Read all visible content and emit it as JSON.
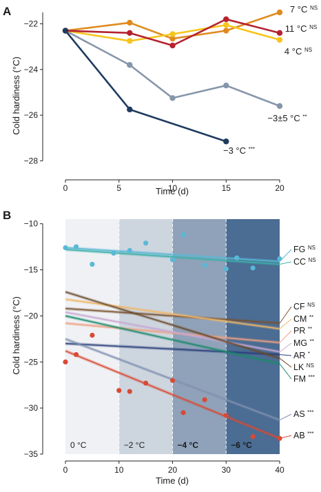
{
  "chart_data": [
    {
      "panel": "A",
      "type": "line",
      "xlabel": "Time (d)",
      "ylabel": "Cold hardiness (°C)",
      "xlim": [
        0,
        20
      ],
      "ylim": [
        -28.5,
        -21.5
      ],
      "xticks": [
        0,
        5,
        10,
        15,
        20
      ],
      "yticks": [
        -28,
        -26,
        -24,
        -22
      ],
      "ytick_labels": [
        "−28",
        "−26",
        "−24",
        "−22"
      ],
      "grid": false,
      "series": [
        {
          "name": "7 °C",
          "sig": "NS",
          "color": "#e08a1e",
          "x": [
            0,
            6,
            10,
            15,
            20
          ],
          "y": [
            -22.3,
            -21.95,
            -22.65,
            -22.3,
            -21.5
          ]
        },
        {
          "name": "11 °C",
          "sig": "NS",
          "color": "#b5222f",
          "x": [
            0,
            6,
            10,
            15,
            20
          ],
          "y": [
            -22.3,
            -22.4,
            -22.95,
            -21.8,
            -22.4
          ]
        },
        {
          "name": "4 °C",
          "sig": "NS",
          "color": "#f6c51d",
          "x": [
            0,
            6,
            10,
            15,
            20
          ],
          "y": [
            -22.3,
            -22.75,
            -22.45,
            -22.05,
            -22.7
          ]
        },
        {
          "name": "−3±5 °C",
          "sig": "**",
          "color": "#8696aa",
          "x": [
            0,
            6,
            10,
            15,
            20
          ],
          "y": [
            -22.3,
            -23.8,
            -25.25,
            -24.7,
            -25.6
          ]
        },
        {
          "name": "−3 °C",
          "sig": "***",
          "color": "#1f3a5f",
          "x": [
            0,
            6,
            15
          ],
          "y": [
            -22.3,
            -25.75,
            -27.15
          ]
        }
      ]
    },
    {
      "panel": "B",
      "type": "scatter",
      "xlabel": "Time (d)",
      "ylabel": "Cold hardiness (°C)",
      "xlim": [
        0,
        40
      ],
      "ylim": [
        -35,
        -9.5
      ],
      "xticks": [
        0,
        10,
        20,
        30,
        40
      ],
      "yticks": [
        -35,
        -30,
        -25,
        -20,
        -15,
        -10
      ],
      "ytick_labels": [
        "−35",
        "−30",
        "−25",
        "−20",
        "−15",
        "−10"
      ],
      "grid": false,
      "bands": [
        {
          "label": "0 °C",
          "x": [
            0,
            10
          ],
          "color": "#eff1f5",
          "label_color": "#1a1a1a"
        },
        {
          "label": "−2 °C",
          "x": [
            10,
            20
          ],
          "color": "#cdd5df",
          "label_color": "#1a1a1a"
        },
        {
          "label": "−4 °C",
          "x": [
            20,
            30
          ],
          "color": "#8fa2b9",
          "label_color": "#ffffff"
        },
        {
          "label": "−6 °C",
          "x": [
            30,
            40
          ],
          "color": "#4b6c93",
          "label_color": "#ffffff"
        }
      ],
      "lines": [
        {
          "name": "FG",
          "sig": "NS",
          "color": "#5ab8d6",
          "y0": -12.6,
          "y1": -14.1
        },
        {
          "name": "CC",
          "sig": "NS",
          "color": "#3db0a8",
          "y0": -12.8,
          "y1": -14.4
        },
        {
          "name": "CF",
          "sig": "NS",
          "color": "#7a5230",
          "y0": -19.2,
          "y1": -20.8
        },
        {
          "name": "CM",
          "sig": "**",
          "color": "#f0b86a",
          "y0": -18.2,
          "y1": -21.4
        },
        {
          "name": "PR",
          "sig": "**",
          "color": "#f0a080",
          "y0": -20.8,
          "y1": -22.9
        },
        {
          "name": "MG",
          "sig": "**",
          "color": "#c9a8d4",
          "y0": -19.6,
          "y1": -23.9
        },
        {
          "name": "AR",
          "sig": "*",
          "color": "#2a3f7a",
          "y0": -23.0,
          "y1": -24.2
        },
        {
          "name": "LK",
          "sig": "NS",
          "color": "#6b4a2a",
          "y0": -17.4,
          "y1": -24.6
        },
        {
          "name": "FM",
          "sig": "***",
          "color": "#1b8a6a",
          "y0": -20.0,
          "y1": -25.2
        },
        {
          "name": "AS",
          "sig": "***",
          "color": "#8090b0",
          "y0": -22.5,
          "y1": -31.3
        },
        {
          "name": "AB",
          "sig": "***",
          "color": "#d84a35",
          "y0": -23.8,
          "y1": -33.3
        }
      ],
      "points": [
        {
          "group": "FG/CC",
          "color": "#5ab8d6",
          "x": [
            0,
            2,
            5,
            9,
            12,
            15,
            20,
            22,
            26,
            30,
            32,
            35,
            40
          ],
          "y": [
            -12.6,
            -12.5,
            -14.4,
            -13.2,
            -12.9,
            -12.1,
            -13.9,
            -11.2,
            -14.5,
            -14.9,
            -13.7,
            -14.8,
            -13.8
          ]
        },
        {
          "group": "AB",
          "color": "#d84a35",
          "x": [
            0,
            2,
            5,
            10,
            12,
            15,
            20,
            22,
            26,
            30,
            35,
            40
          ],
          "y": [
            -25.0,
            -24.2,
            -22.1,
            -28.1,
            -28.2,
            -27.3,
            -27.0,
            -30.5,
            -29.1,
            -30.8,
            -33.1,
            -33.3
          ]
        }
      ]
    }
  ]
}
